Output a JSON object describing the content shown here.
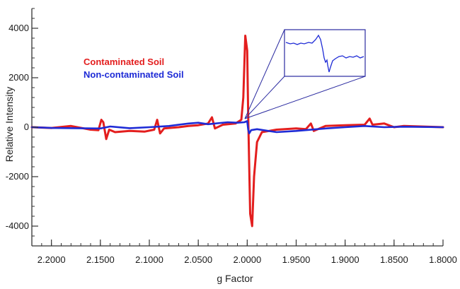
{
  "chart_data": {
    "type": "line",
    "xlabel": "g Factor",
    "ylabel": "Relative Intensity",
    "xlim": [
      2.22,
      1.8
    ],
    "ylim": [
      -4800,
      4800
    ],
    "x_reversed": true,
    "x_ticks": [
      2.2,
      2.15,
      2.1,
      2.05,
      2.0,
      1.95,
      1.9,
      1.85,
      1.8
    ],
    "x_tick_labels": [
      "2.2000",
      "2.1500",
      "2.1000",
      "2.0500",
      "2.0000",
      "1.9500",
      "1.9000",
      "1.8500",
      "1.8000"
    ],
    "y_ticks": [
      -4000,
      -2000,
      0,
      2000,
      4000
    ],
    "y_tick_labels": [
      "-4000",
      "-2000",
      "0",
      "2000",
      "4000"
    ],
    "legend_placement": "top-left",
    "inset": "zoomed view of Non-contaminated Soil signal near g = 2.0000",
    "series": [
      {
        "name": "Contaminated Soil",
        "color": "#e31e1e",
        "points": [
          [
            2.22,
            0
          ],
          [
            2.2,
            -30
          ],
          [
            2.18,
            50
          ],
          [
            2.16,
            -100
          ],
          [
            2.152,
            -120
          ],
          [
            2.149,
            300
          ],
          [
            2.147,
            200
          ],
          [
            2.144,
            -480
          ],
          [
            2.141,
            -100
          ],
          [
            2.135,
            -200
          ],
          [
            2.12,
            -150
          ],
          [
            2.105,
            -180
          ],
          [
            2.095,
            -100
          ],
          [
            2.092,
            300
          ],
          [
            2.089,
            -250
          ],
          [
            2.085,
            -50
          ],
          [
            2.07,
            0
          ],
          [
            2.06,
            50
          ],
          [
            2.05,
            80
          ],
          [
            2.04,
            150
          ],
          [
            2.036,
            400
          ],
          [
            2.033,
            -50
          ],
          [
            2.025,
            100
          ],
          [
            2.012,
            150
          ],
          [
            2.006,
            300
          ],
          [
            2.004,
            1200
          ],
          [
            2.002,
            3700
          ],
          [
            2.0,
            3100
          ],
          [
            1.999,
            500
          ],
          [
            1.997,
            -3500
          ],
          [
            1.995,
            -4000
          ],
          [
            1.993,
            -2000
          ],
          [
            1.99,
            -600
          ],
          [
            1.985,
            -200
          ],
          [
            1.97,
            -100
          ],
          [
            1.95,
            -50
          ],
          [
            1.94,
            -80
          ],
          [
            1.935,
            150
          ],
          [
            1.932,
            -150
          ],
          [
            1.92,
            50
          ],
          [
            1.9,
            80
          ],
          [
            1.88,
            100
          ],
          [
            1.875,
            350
          ],
          [
            1.872,
            100
          ],
          [
            1.86,
            150
          ],
          [
            1.85,
            0
          ],
          [
            1.84,
            50
          ],
          [
            1.8,
            0
          ]
        ]
      },
      {
        "name": "Non-contaminated Soil",
        "color": "#1e2bd6",
        "points": [
          [
            2.22,
            0
          ],
          [
            2.2,
            -30
          ],
          [
            2.15,
            -50
          ],
          [
            2.14,
            30
          ],
          [
            2.12,
            -40
          ],
          [
            2.1,
            0
          ],
          [
            2.08,
            50
          ],
          [
            2.06,
            150
          ],
          [
            2.05,
            180
          ],
          [
            2.04,
            120
          ],
          [
            2.02,
            200
          ],
          [
            2.01,
            180
          ],
          [
            2.003,
            200
          ],
          [
            2.0,
            250
          ],
          [
            1.999,
            -100
          ],
          [
            1.998,
            -250
          ],
          [
            1.996,
            -120
          ],
          [
            1.99,
            -80
          ],
          [
            1.97,
            -200
          ],
          [
            1.95,
            -150
          ],
          [
            1.92,
            -50
          ],
          [
            1.9,
            0
          ],
          [
            1.88,
            50
          ],
          [
            1.86,
            0
          ],
          [
            1.84,
            20
          ],
          [
            1.8,
            0
          ]
        ]
      }
    ]
  }
}
